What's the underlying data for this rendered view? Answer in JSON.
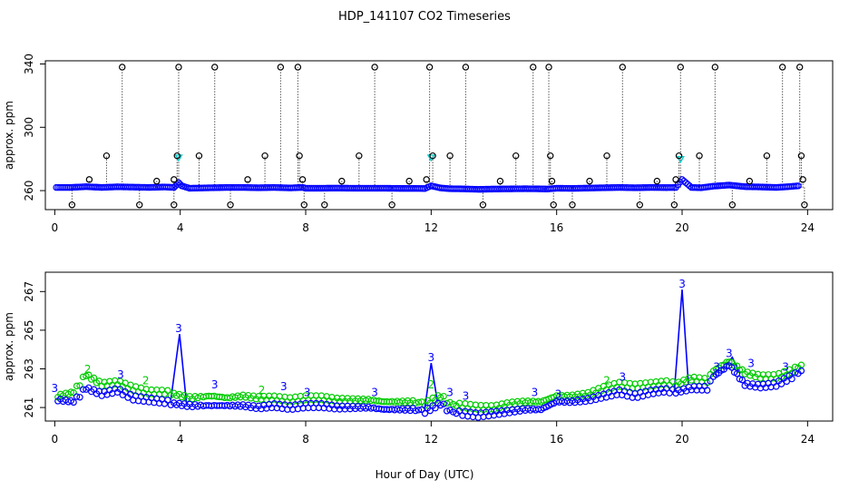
{
  "figure": {
    "title": "HDP_141107  CO2 Timeseries",
    "xlabel": "Hour of Day (UTC)"
  },
  "chart_data": [
    {
      "type": "scatter",
      "panel": "top",
      "ylabel": "approx. ppm",
      "xlim": [
        -0.3,
        24.8
      ],
      "ylim": [
        248,
        342
      ],
      "xticks": [
        0,
        4,
        8,
        12,
        16,
        20,
        24
      ],
      "yticks": [
        260,
        300,
        340
      ],
      "grid": false,
      "baseline_value": 262,
      "series": [
        {
          "color": "#0000ff",
          "marker": "circle",
          "points": [
            [
              0.05,
              262
            ],
            [
              0.5,
              262
            ],
            [
              1.0,
              262.5
            ],
            [
              1.5,
              262
            ],
            [
              2.0,
              262.4
            ],
            [
              2.5,
              262.2
            ],
            [
              3.0,
              262
            ],
            [
              3.5,
              262.3
            ],
            [
              3.8,
              262
            ],
            [
              3.95,
              265
            ],
            [
              4.05,
              263
            ],
            [
              4.3,
              261.5
            ],
            [
              5.0,
              261.8
            ],
            [
              5.5,
              262
            ],
            [
              6.0,
              262
            ],
            [
              6.5,
              261.8
            ],
            [
              7.0,
              262
            ],
            [
              7.5,
              261.7
            ],
            [
              7.9,
              262
            ],
            [
              8.0,
              261.5
            ],
            [
              8.5,
              261.5
            ],
            [
              9.0,
              261.6
            ],
            [
              9.5,
              261.5
            ],
            [
              10.0,
              261.5
            ],
            [
              10.5,
              261.5
            ],
            [
              11.0,
              261.4
            ],
            [
              11.5,
              261.4
            ],
            [
              11.8,
              261.3
            ],
            [
              12.0,
              263
            ],
            [
              12.3,
              261.7
            ],
            [
              12.6,
              261.2
            ],
            [
              13.0,
              261.1
            ],
            [
              13.5,
              260.8
            ],
            [
              14.0,
              261
            ],
            [
              14.5,
              261.1
            ],
            [
              15.0,
              261.2
            ],
            [
              15.5,
              261.1
            ],
            [
              15.7,
              261
            ],
            [
              16.0,
              261.5
            ],
            [
              16.5,
              261.4
            ],
            [
              17.0,
              261.6
            ],
            [
              17.5,
              261.8
            ],
            [
              18.0,
              262
            ],
            [
              18.5,
              261.8
            ],
            [
              19.0,
              262
            ],
            [
              19.5,
              261.9
            ],
            [
              19.8,
              262
            ],
            [
              20.0,
              267
            ],
            [
              20.3,
              262
            ],
            [
              20.6,
              261.8
            ],
            [
              21.0,
              262.8
            ],
            [
              21.5,
              263.5
            ],
            [
              22.0,
              262.5
            ],
            [
              22.5,
              262.3
            ],
            [
              23.0,
              262
            ],
            [
              23.4,
              262.5
            ],
            [
              23.7,
              263
            ]
          ]
        },
        {
          "color": "#00cccc",
          "marker": "triangle",
          "points": [
            [
              3.95,
              281
            ],
            [
              12.0,
              281
            ],
            [
              19.95,
              280
            ]
          ]
        },
        {
          "color": "#000000",
          "marker": "circle",
          "points": [
            [
              0.55,
              251
            ],
            [
              1.1,
              267
            ],
            [
              1.65,
              282
            ],
            [
              2.15,
              338
            ],
            [
              2.7,
              251
            ],
            [
              3.25,
              266
            ],
            [
              3.8,
              251
            ],
            [
              3.8,
              267
            ],
            [
              3.9,
              282
            ],
            [
              3.95,
              338
            ],
            [
              4.6,
              282
            ],
            [
              5.1,
              338
            ],
            [
              5.6,
              251
            ],
            [
              6.15,
              267
            ],
            [
              6.7,
              282
            ],
            [
              7.2,
              338
            ],
            [
              7.75,
              338
            ],
            [
              7.8,
              282
            ],
            [
              7.9,
              267
            ],
            [
              7.95,
              251
            ],
            [
              8.6,
              251
            ],
            [
              9.15,
              266
            ],
            [
              9.7,
              282
            ],
            [
              10.2,
              338
            ],
            [
              10.75,
              251
            ],
            [
              11.3,
              266
            ],
            [
              11.85,
              267
            ],
            [
              11.95,
              338
            ],
            [
              12.05,
              282
            ],
            [
              12.6,
              282
            ],
            [
              13.1,
              338
            ],
            [
              13.65,
              251
            ],
            [
              14.2,
              266
            ],
            [
              14.7,
              282
            ],
            [
              15.25,
              338
            ],
            [
              15.75,
              338
            ],
            [
              15.8,
              282
            ],
            [
              15.85,
              266
            ],
            [
              15.9,
              251
            ],
            [
              16.5,
              251
            ],
            [
              17.05,
              266
            ],
            [
              17.6,
              282
            ],
            [
              18.1,
              338
            ],
            [
              18.65,
              251
            ],
            [
              19.2,
              266
            ],
            [
              19.75,
              251
            ],
            [
              19.8,
              267
            ],
            [
              19.9,
              282
            ],
            [
              19.95,
              338
            ],
            [
              20.55,
              282
            ],
            [
              21.05,
              338
            ],
            [
              21.6,
              251
            ],
            [
              22.15,
              266
            ],
            [
              22.7,
              282
            ],
            [
              23.2,
              338
            ],
            [
              23.75,
              338
            ],
            [
              23.8,
              282
            ],
            [
              23.85,
              267
            ],
            [
              23.9,
              251
            ]
          ]
        }
      ]
    },
    {
      "type": "scatter",
      "panel": "bottom",
      "ylabel": "approx. ppm",
      "xlim": [
        -0.3,
        24.8
      ],
      "ylim": [
        260.3,
        268.0
      ],
      "xticks": [
        0,
        4,
        8,
        12,
        16,
        20,
        24
      ],
      "yticks": [
        261,
        263,
        265,
        267
      ],
      "grid": false,
      "series": [
        {
          "color": "#00cc00",
          "marker": "circle",
          "points": [
            [
              0.1,
              261.6
            ],
            [
              0.6,
              261.8
            ],
            [
              1.0,
              262.7
            ],
            [
              1.5,
              262.2
            ],
            [
              2.0,
              262.3
            ],
            [
              2.5,
              262
            ],
            [
              3.0,
              261.8
            ],
            [
              3.5,
              261.8
            ],
            [
              3.8,
              261.7
            ],
            [
              4.3,
              261.5
            ],
            [
              5.0,
              261.6
            ],
            [
              5.5,
              261.5
            ],
            [
              6.0,
              261.6
            ],
            [
              6.5,
              261.5
            ],
            [
              7.0,
              261.5
            ],
            [
              7.5,
              261.4
            ],
            [
              8.0,
              261.5
            ],
            [
              8.5,
              261.5
            ],
            [
              9.0,
              261.4
            ],
            [
              9.5,
              261.4
            ],
            [
              10.0,
              261.4
            ],
            [
              10.5,
              261.3
            ],
            [
              11.0,
              261.3
            ],
            [
              11.5,
              261.3
            ],
            [
              11.8,
              261.2
            ],
            [
              12.3,
              261.6
            ],
            [
              12.6,
              261.2
            ],
            [
              13.0,
              261.1
            ],
            [
              13.5,
              261
            ],
            [
              14.0,
              261
            ],
            [
              14.5,
              261.2
            ],
            [
              15.0,
              261.3
            ],
            [
              15.5,
              261.3
            ],
            [
              16.0,
              261.6
            ],
            [
              16.5,
              261.6
            ],
            [
              17.0,
              261.7
            ],
            [
              17.5,
              262
            ],
            [
              18.0,
              262.2
            ],
            [
              18.5,
              262.1
            ],
            [
              19.0,
              262.2
            ],
            [
              19.5,
              262.3
            ],
            [
              19.8,
              262.2
            ],
            [
              20.3,
              262.5
            ],
            [
              20.8,
              262.4
            ],
            [
              21.0,
              262.9
            ],
            [
              21.5,
              263.4
            ],
            [
              22.0,
              262.8
            ],
            [
              22.5,
              262.6
            ],
            [
              23.0,
              262.6
            ],
            [
              23.5,
              262.9
            ],
            [
              23.8,
              263.2
            ]
          ]
        },
        {
          "color": "#0000ff",
          "marker": "circle",
          "points": [
            [
              0.1,
              261.4
            ],
            [
              0.6,
              261.3
            ],
            [
              1.0,
              262.0
            ],
            [
              1.5,
              261.7
            ],
            [
              2.0,
              261.9
            ],
            [
              2.5,
              261.5
            ],
            [
              3.0,
              261.4
            ],
            [
              3.5,
              261.3
            ],
            [
              3.8,
              261.2
            ],
            [
              4.3,
              261.1
            ],
            [
              5.0,
              261.1
            ],
            [
              5.5,
              261.1
            ],
            [
              6.0,
              261.1
            ],
            [
              6.5,
              261
            ],
            [
              7.0,
              261.1
            ],
            [
              7.5,
              261
            ],
            [
              8.0,
              261.1
            ],
            [
              8.5,
              261.1
            ],
            [
              9.0,
              261
            ],
            [
              9.5,
              261
            ],
            [
              10.0,
              261
            ],
            [
              10.5,
              260.9
            ],
            [
              11.0,
              260.9
            ],
            [
              11.5,
              260.9
            ],
            [
              11.8,
              260.8
            ],
            [
              12.3,
              261.2
            ],
            [
              12.6,
              260.8
            ],
            [
              13.0,
              260.7
            ],
            [
              13.5,
              260.6
            ],
            [
              14.0,
              260.7
            ],
            [
              14.5,
              260.8
            ],
            [
              15.0,
              260.9
            ],
            [
              15.5,
              260.9
            ],
            [
              16.0,
              261.3
            ],
            [
              16.5,
              261.3
            ],
            [
              17.0,
              261.4
            ],
            [
              17.5,
              261.6
            ],
            [
              18.0,
              261.8
            ],
            [
              18.5,
              261.6
            ],
            [
              19.0,
              261.8
            ],
            [
              19.5,
              261.9
            ],
            [
              19.8,
              261.8
            ],
            [
              20.3,
              262
            ],
            [
              20.8,
              262
            ],
            [
              21.0,
              262.6
            ],
            [
              21.5,
              263.2
            ],
            [
              22.0,
              262.2
            ],
            [
              22.5,
              262.1
            ],
            [
              23.0,
              262.2
            ],
            [
              23.5,
              262.6
            ],
            [
              23.8,
              262.9
            ]
          ]
        }
      ],
      "spike_line": {
        "color": "#0000ff",
        "points": [
          [
            3.7,
            261.4
          ],
          [
            3.98,
            264.8
          ],
          [
            4.2,
            261.2
          ],
          [
            11.8,
            261.0
          ],
          [
            12.0,
            263.3
          ],
          [
            12.2,
            261.3
          ],
          [
            19.75,
            261.8
          ],
          [
            20.0,
            267.1
          ],
          [
            20.2,
            262.2
          ],
          [
            21.4,
            263.2
          ],
          [
            21.6,
            263.6
          ],
          [
            21.8,
            262.9
          ]
        ]
      },
      "annotations": {
        "text": "3",
        "color": "#0000ff",
        "points": [
          [
            0.0,
            261.8
          ],
          [
            2.1,
            262.5
          ],
          [
            3.95,
            264.9
          ],
          [
            5.1,
            262.0
          ],
          [
            7.3,
            261.9
          ],
          [
            8.05,
            261.6
          ],
          [
            10.2,
            261.6
          ],
          [
            12.0,
            263.4
          ],
          [
            12.6,
            261.6
          ],
          [
            13.1,
            261.4
          ],
          [
            15.3,
            261.6
          ],
          [
            16.05,
            261.5
          ],
          [
            18.1,
            262.4
          ],
          [
            20.0,
            267.2
          ],
          [
            21.1,
            262.9
          ],
          [
            21.5,
            263.6
          ],
          [
            22.2,
            263.1
          ],
          [
            23.3,
            262.9
          ]
        ]
      },
      "annotations_green": {
        "text": "2",
        "color": "#00cc00",
        "points": [
          [
            1.05,
            262.8
          ],
          [
            2.9,
            262.2
          ],
          [
            6.6,
            261.7
          ],
          [
            12.0,
            262.0
          ],
          [
            17.6,
            262.2
          ]
        ]
      }
    }
  ]
}
